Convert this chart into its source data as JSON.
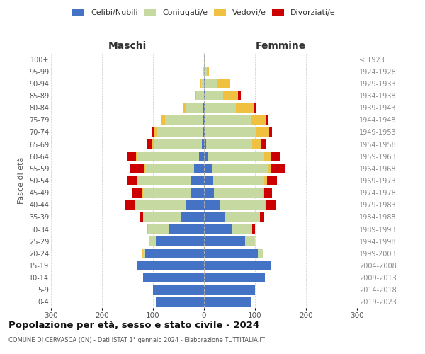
{
  "age_groups": [
    "0-4",
    "5-9",
    "10-14",
    "15-19",
    "20-24",
    "25-29",
    "30-34",
    "35-39",
    "40-44",
    "45-49",
    "50-54",
    "55-59",
    "60-64",
    "65-69",
    "70-74",
    "75-79",
    "80-84",
    "85-89",
    "90-94",
    "95-99",
    "100+"
  ],
  "birth_years": [
    "2019-2023",
    "2014-2018",
    "2009-2013",
    "2004-2008",
    "1999-2003",
    "1994-1998",
    "1989-1993",
    "1984-1988",
    "1979-1983",
    "1974-1978",
    "1969-1973",
    "1964-1968",
    "1959-1963",
    "1954-1958",
    "1949-1953",
    "1944-1948",
    "1939-1943",
    "1934-1938",
    "1929-1933",
    "1924-1928",
    "≤ 1923"
  ],
  "colors": {
    "celibi": "#4472C4",
    "coniugati": "#C5D9A0",
    "vedovi": "#F0C040",
    "divorziati": "#CC0000"
  },
  "males": {
    "celibi": [
      95,
      100,
      120,
      130,
      115,
      95,
      70,
      45,
      35,
      25,
      25,
      20,
      10,
      4,
      3,
      2,
      1,
      0,
      0,
      0,
      0
    ],
    "coniugati": [
      0,
      0,
      0,
      0,
      5,
      12,
      40,
      75,
      100,
      95,
      105,
      95,
      120,
      95,
      90,
      75,
      35,
      15,
      5,
      1,
      0
    ],
    "vedovi": [
      0,
      0,
      0,
      0,
      1,
      0,
      1,
      0,
      1,
      2,
      2,
      2,
      3,
      4,
      5,
      8,
      5,
      3,
      2,
      0,
      0
    ],
    "divorziati": [
      0,
      0,
      0,
      0,
      0,
      0,
      2,
      5,
      18,
      20,
      18,
      28,
      18,
      10,
      5,
      0,
      0,
      0,
      0,
      0,
      0
    ]
  },
  "females": {
    "celibi": [
      92,
      100,
      120,
      130,
      105,
      80,
      55,
      40,
      30,
      20,
      18,
      15,
      8,
      4,
      3,
      2,
      2,
      2,
      2,
      0,
      0
    ],
    "coniugati": [
      0,
      0,
      0,
      0,
      10,
      20,
      40,
      70,
      90,
      95,
      100,
      110,
      110,
      90,
      100,
      90,
      60,
      35,
      25,
      5,
      1
    ],
    "vedovi": [
      0,
      0,
      0,
      0,
      0,
      0,
      0,
      0,
      2,
      3,
      5,
      5,
      12,
      18,
      25,
      30,
      35,
      30,
      25,
      5,
      2
    ],
    "divorziati": [
      0,
      0,
      0,
      0,
      0,
      0,
      5,
      8,
      20,
      15,
      20,
      30,
      18,
      10,
      5,
      5,
      5,
      5,
      0,
      0,
      0
    ]
  },
  "xlim": 300,
  "title": "Popolazione per età, sesso e stato civile - 2024",
  "subtitle": "COMUNE DI CERVASCA (CN) - Dati ISTAT 1° gennaio 2024 - Elaborazione TUTTITALIA.IT",
  "ylabel_left": "Fasce di età",
  "xlabel_left": "Maschi",
  "xlabel_right": "Femmine",
  "legend_labels": [
    "Celibi/Nubili",
    "Coniugati/e",
    "Vedovi/e",
    "Divorziati/e"
  ],
  "background_color": "#ffffff",
  "grid_color": "#cccccc"
}
